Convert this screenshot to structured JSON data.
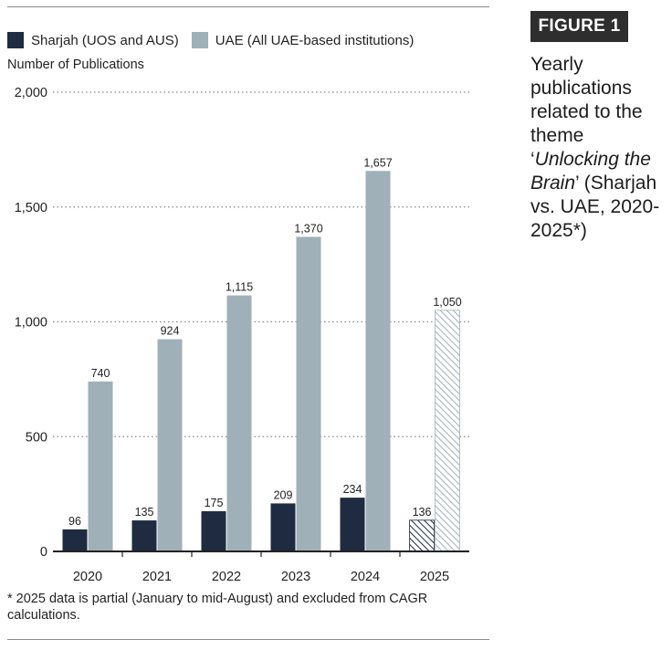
{
  "legend": {
    "sharjah_label": "Sharjah (UOS and AUS)",
    "uae_label": "UAE (All UAE-based institutions)"
  },
  "figure": {
    "badge": "FIGURE 1",
    "caption_before": "Yearly publications related to the theme ‘",
    "caption_italic": "Unlocking the Brain",
    "caption_after": "’ (Sharjah vs. UAE, 2020-2025*)"
  },
  "footnote": "* 2025 data is partial (January to mid-August) and excluded from CAGR calculations.",
  "colors": {
    "sharjah": "#1e2b40",
    "uae": "#9fb0b8",
    "grid": "#8a8a8a",
    "axis": "#222222"
  },
  "chart_data": {
    "type": "bar",
    "title": "",
    "xlabel": "",
    "ylabel": "Number of Publications",
    "ylim": [
      0,
      2000
    ],
    "yticks": [
      0,
      500,
      1000,
      1500,
      2000
    ],
    "ytick_labels": [
      "0",
      "500",
      "1,000",
      "1,500",
      "2,000"
    ],
    "categories": [
      "2020",
      "2021",
      "2022",
      "2023",
      "2024",
      "2025"
    ],
    "partial_categories": [
      "2025"
    ],
    "series": [
      {
        "name": "Sharjah (UOS and AUS)",
        "values": [
          96,
          135,
          175,
          209,
          234,
          136
        ],
        "labels": [
          "96",
          "135",
          "175",
          "209",
          "234",
          "136"
        ]
      },
      {
        "name": "UAE (All UAE-based institutions)",
        "values": [
          740,
          924,
          1115,
          1370,
          1657,
          1050
        ],
        "labels": [
          "740",
          "924",
          "1,115",
          "1,370",
          "1,657",
          "1,050"
        ]
      }
    ],
    "grid": true
  }
}
